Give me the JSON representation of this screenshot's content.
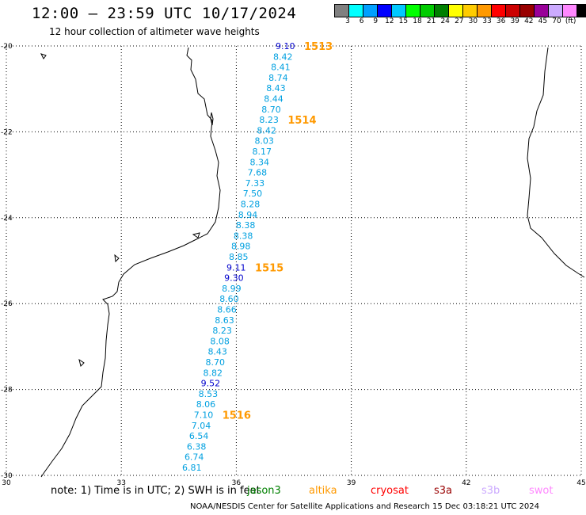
{
  "header": {
    "title": "12:00 – 23:59 UTC 10/17/2024",
    "subtitle": "12 hour collection of altimeter wave heights"
  },
  "colorbar": {
    "colors": [
      "#808080",
      "#00ffff",
      "#00a0ff",
      "#0000ff",
      "#00c8ff",
      "#00ff00",
      "#00cc00",
      "#008000",
      "#ffff00",
      "#ffcc00",
      "#ff9900",
      "#ff0000",
      "#cc0000",
      "#990000",
      "#990099",
      "#ccaaff",
      "#ff88ff",
      "#000000"
    ],
    "labels": [
      "3",
      "6",
      "9",
      "12",
      "15",
      "18",
      "21",
      "24",
      "27",
      "30",
      "33",
      "36",
      "39",
      "42",
      "45",
      "70",
      "(ft)"
    ]
  },
  "axes": {
    "lat_labels": [
      "-20",
      "-22",
      "-24",
      "-26",
      "-28",
      "-30"
    ],
    "lon_labels": [
      "30",
      "33",
      "36",
      "39",
      "42",
      "45"
    ],
    "lat_range": [
      -30,
      -20
    ],
    "lon_range": [
      30,
      45
    ]
  },
  "track_labels": [
    "1513",
    "1514",
    "1515",
    "1516"
  ],
  "swh_readings": [
    "9.10",
    "8.42",
    "8.41",
    "8.74",
    "8.43",
    "8.44",
    "8.70",
    "8.23",
    "8.42",
    "8.03",
    "8.17",
    "8.34",
    "7.68",
    "7.33",
    "7.50",
    "8.28",
    "8.94",
    "8.38",
    "8.38",
    "8.98",
    "8.85",
    "9.11",
    "9.30",
    "8.99",
    "8.60",
    "8.66",
    "8.63",
    "8.23",
    "8.08",
    "8.43",
    "8.70",
    "8.82",
    "9.52",
    "8.53",
    "8.06",
    "7.10",
    "7.04",
    "6.54",
    "6.38",
    "6.74",
    "6.81"
  ],
  "colors": {
    "swh_light": "#00a0e0",
    "swh_dark": "#0000cc",
    "track": "#ff9900",
    "land": "#000000"
  },
  "note": "note: 1) Time is in UTC; 2) SWH is in feet",
  "satellites": [
    {
      "name": "jason3",
      "color": "#008000"
    },
    {
      "name": "altika",
      "color": "#ff9900"
    },
    {
      "name": "cryosat",
      "color": "#ff0000"
    },
    {
      "name": "s3a",
      "color": "#990000"
    },
    {
      "name": "s3b",
      "color": "#ccaaff"
    },
    {
      "name": "swot",
      "color": "#ff88ff"
    }
  ],
  "footer": "NOAA/NESDIS Center for Satellite Applications and Research   15 Dec 03:18:21 UTC 2024"
}
